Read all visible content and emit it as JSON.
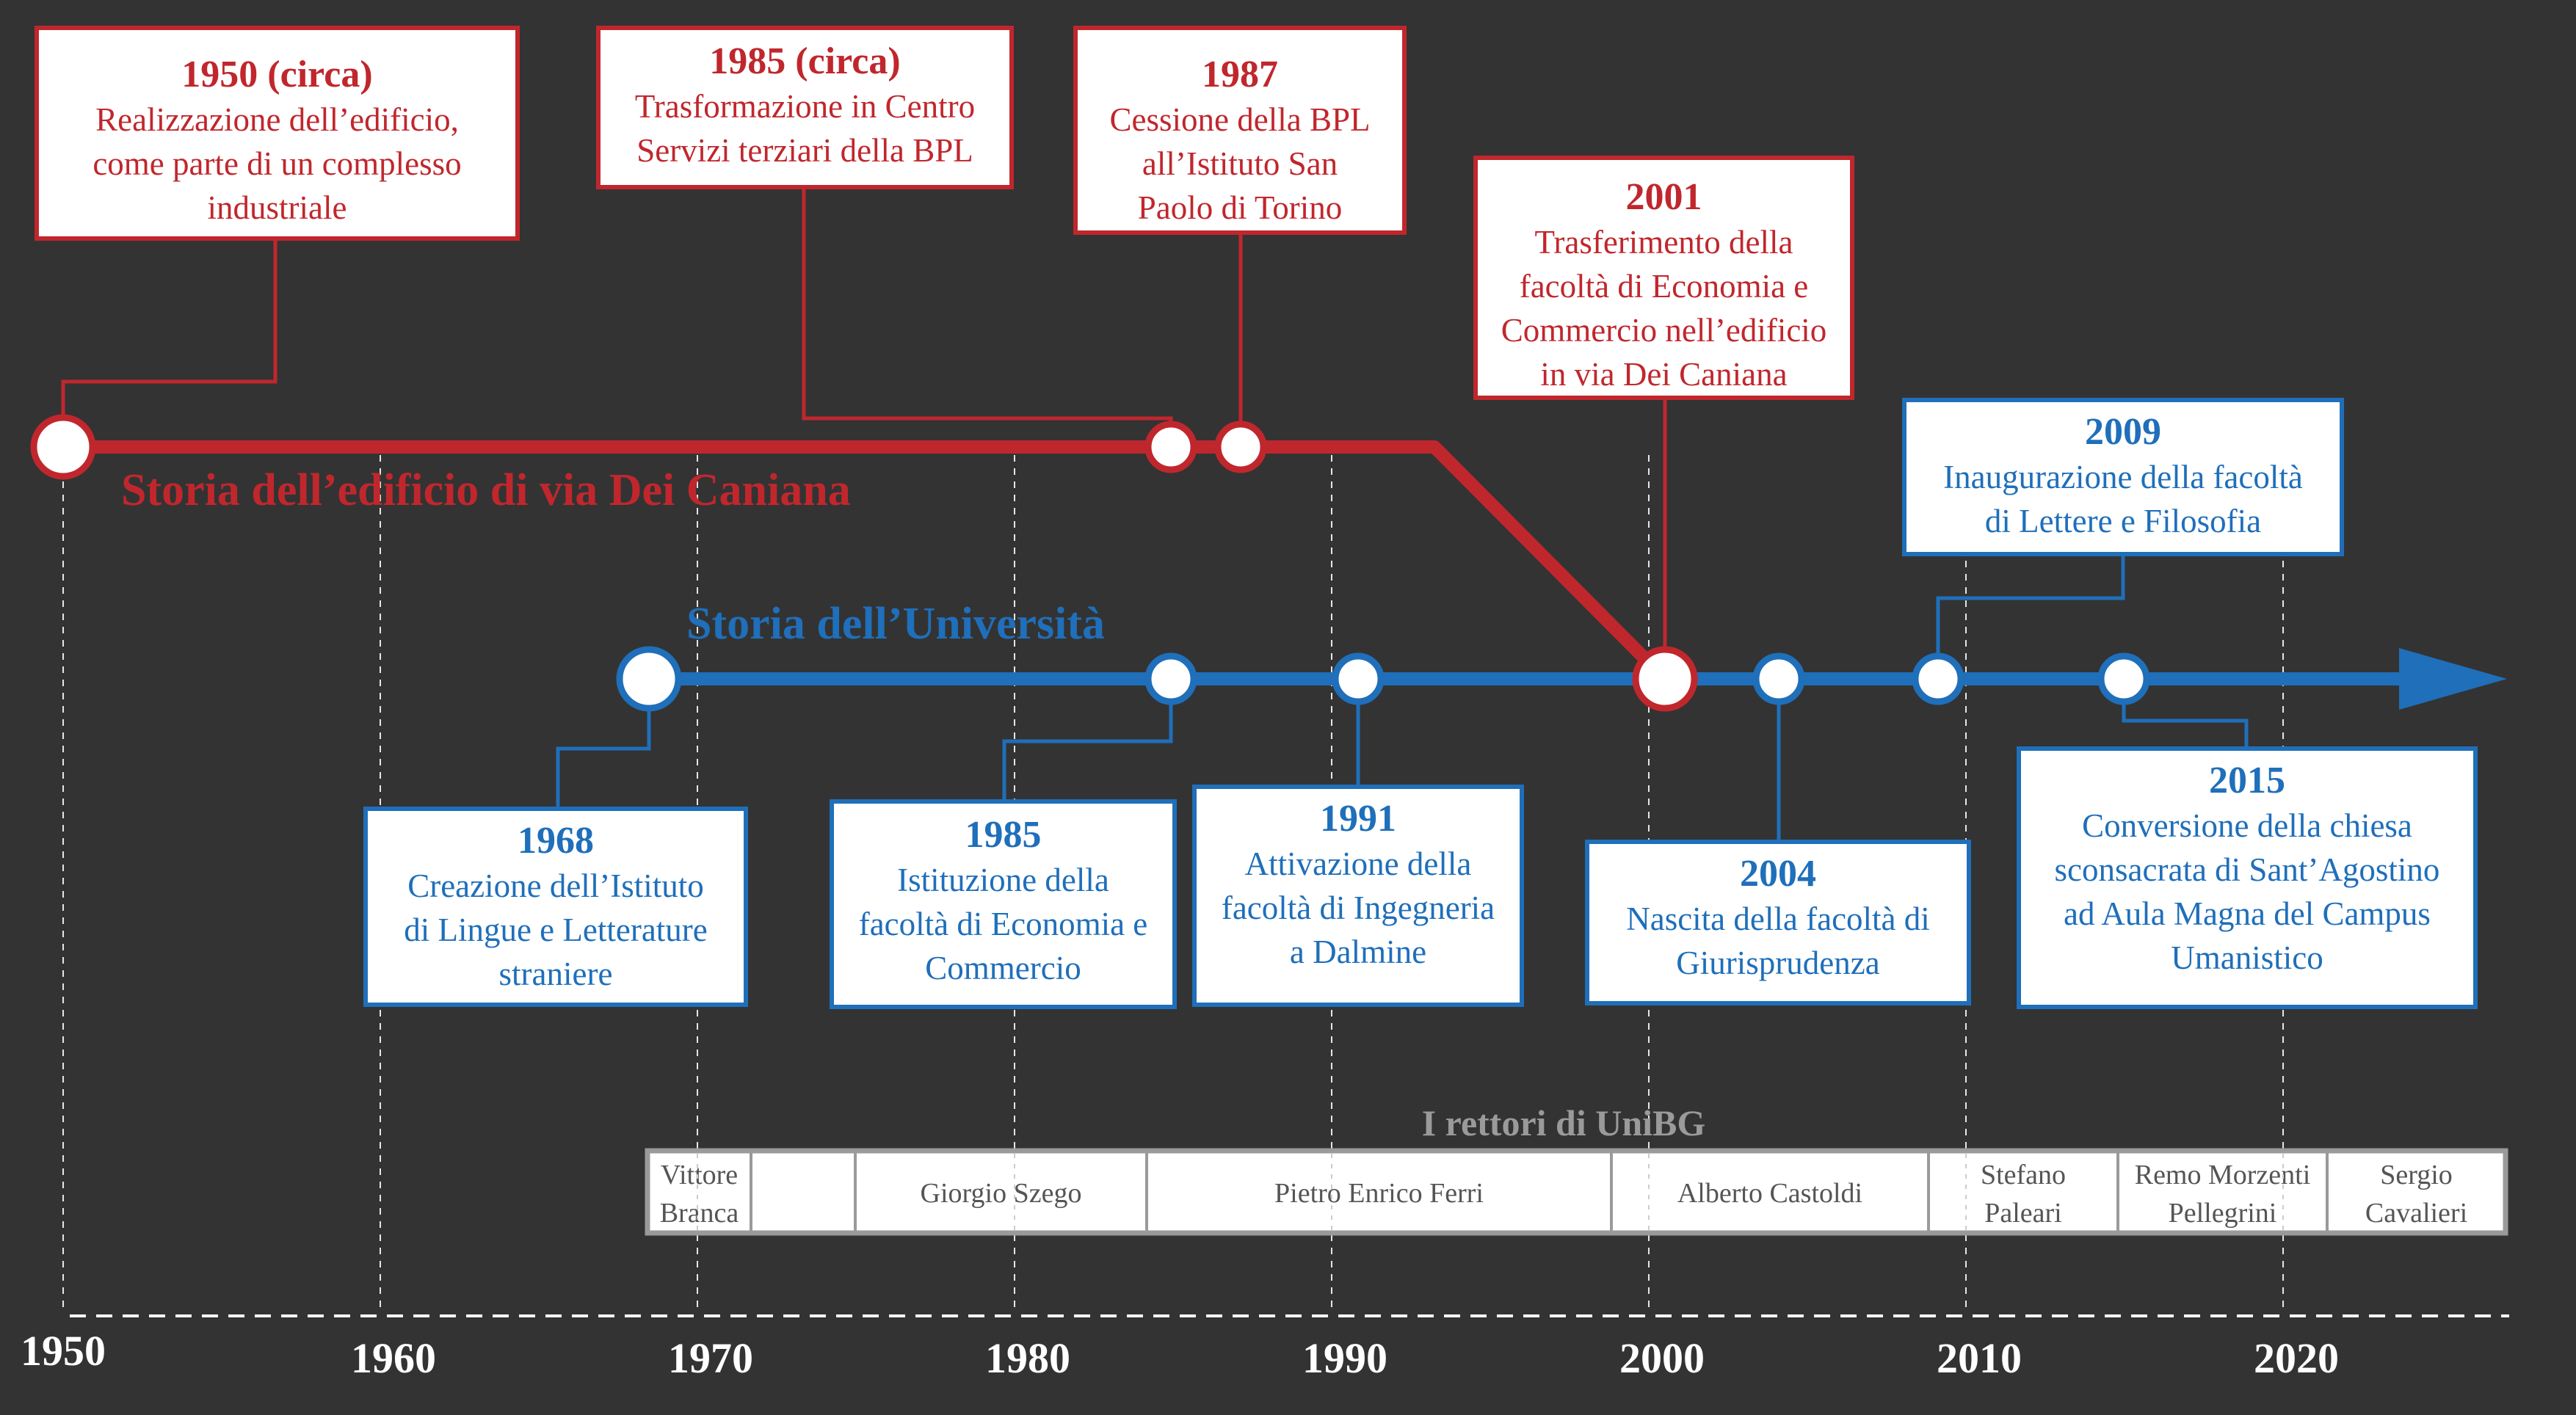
{
  "colors": {
    "background": "#333333",
    "building": "#c0272d",
    "university": "#1f6fba",
    "axis": "#ffffff",
    "rectors_border": "#9a9a9a",
    "rectors_title": "#9a9a9a",
    "box_fill": "#ffffff"
  },
  "building_title": "Storia dell’edificio di via Dei Caniana",
  "university_title": "Storia dell’Università",
  "building_events": [
    {
      "year": "1950 (circa)",
      "lines": [
        "Realizzazione dell’edificio,",
        "come parte di un complesso",
        "industriale"
      ]
    },
    {
      "year": "1985 (circa)",
      "lines": [
        "Trasformazione in Centro",
        "Servizi terziari della BPL"
      ]
    },
    {
      "year": "1987",
      "lines": [
        "Cessione della BPL",
        "all’Istituto San",
        "Paolo di Torino"
      ]
    },
    {
      "year": "2001",
      "lines": [
        "Trasferimento della",
        "facoltà di Economia e",
        "Commercio nell’edificio",
        "in via Dei Caniana"
      ]
    }
  ],
  "university_events": [
    {
      "year": "1968",
      "lines": [
        "Creazione dell’Istituto",
        "di Lingue e Letterature",
        "straniere"
      ]
    },
    {
      "year": "1985",
      "lines": [
        "Istituzione della",
        "facoltà di Economia e",
        "Commercio"
      ]
    },
    {
      "year": "1991",
      "lines": [
        "Attivazione della",
        "facoltà di Ingegneria",
        "a Dalmine"
      ]
    },
    {
      "year": "2004",
      "lines": [
        "Nascita della facoltà di",
        "Giurisprudenza"
      ]
    },
    {
      "year": "2009",
      "lines": [
        "Inaugurazione della facoltà",
        "di Lettere e Filosofia"
      ]
    },
    {
      "year": "2015",
      "lines": [
        "Conversione della chiesa",
        "sconsacrata di Sant’Agostino",
        "ad Aula Magna del Campus",
        "Umanistico"
      ]
    }
  ],
  "rectors_title": "I rettori di UniBG",
  "rectors": [
    {
      "lines": [
        "Vittore",
        "Branca"
      ]
    },
    {
      "lines": []
    },
    {
      "lines": [
        "Giorgio Szego"
      ]
    },
    {
      "lines": [
        "Pietro Enrico Ferri"
      ]
    },
    {
      "lines": [
        "Alberto Castoldi"
      ]
    },
    {
      "lines": [
        "Stefano",
        "Paleari"
      ]
    },
    {
      "lines": [
        "Remo Morzenti",
        "Pellegrini"
      ]
    },
    {
      "lines": [
        "Sergio",
        "Cavalieri"
      ]
    }
  ],
  "axis_labels": [
    "1950",
    "1960",
    "1970",
    "1980",
    "1990",
    "2000",
    "2010",
    "2020"
  ]
}
